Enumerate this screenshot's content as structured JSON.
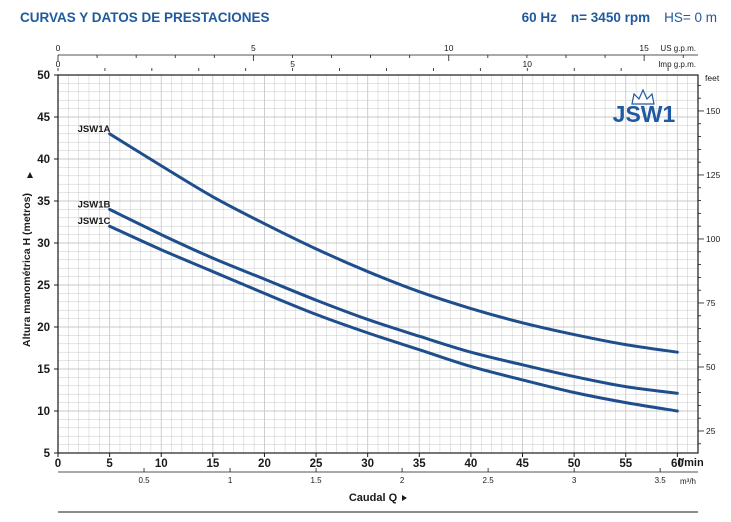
{
  "header": {
    "title": "CURVAS Y DATOS DE PRESTACIONES",
    "frequency": "60 Hz",
    "speed": "n= 3450 rpm",
    "hs": "HS= 0 m"
  },
  "brand_logo_text": "JSW1",
  "colors": {
    "curve": "#1f4e8c",
    "header": "#1f5aa0",
    "grid": "#c9c9c9",
    "axis": "#1a1a1a"
  },
  "chart_data": {
    "type": "line",
    "title": "",
    "xlabel": "Caudal Q",
    "ylabel": "Altura manométrica H (metros)",
    "x_unit": "l/min",
    "xlim": [
      0,
      62
    ],
    "ylim": [
      5,
      50
    ],
    "x_ticks": [
      0,
      5,
      10,
      15,
      20,
      25,
      30,
      35,
      40,
      45,
      50,
      55,
      60
    ],
    "y_ticks": [
      5,
      10,
      15,
      20,
      25,
      30,
      35,
      40,
      45,
      50
    ],
    "right_axis": {
      "unit": "feet",
      "ticks": [
        25,
        50,
        75,
        100,
        125,
        150
      ]
    },
    "top_axis_us": {
      "unit": "US g.p.m.",
      "ticks": [
        0,
        5,
        10,
        15
      ]
    },
    "top_axis_imp": {
      "unit": "Imp g.p.m.",
      "ticks": [
        0,
        5,
        10
      ]
    },
    "bottom_axis_m3h": {
      "unit": "m³/h",
      "ticks": [
        "0.5",
        "1",
        "1.5",
        "2",
        "2.5",
        "3",
        "3.5"
      ]
    },
    "grid": true,
    "series": [
      {
        "name": "JSW1A",
        "x": [
          5,
          10,
          15,
          20,
          25,
          30,
          35,
          40,
          45,
          50,
          55,
          60
        ],
        "y": [
          43,
          39.2,
          35.5,
          32.3,
          29.3,
          26.6,
          24.2,
          22.2,
          20.5,
          19.1,
          17.9,
          17
        ]
      },
      {
        "name": "JSW1B",
        "x": [
          5,
          10,
          15,
          20,
          25,
          30,
          35,
          40,
          45,
          50,
          55,
          60
        ],
        "y": [
          34,
          31,
          28.2,
          25.7,
          23.2,
          20.9,
          18.9,
          17,
          15.5,
          14.1,
          12.9,
          12.1
        ]
      },
      {
        "name": "JSW1C",
        "x": [
          5,
          10,
          15,
          20,
          25,
          30,
          35,
          40,
          45,
          50,
          55,
          60
        ],
        "y": [
          32,
          29.2,
          26.6,
          24,
          21.5,
          19.3,
          17.3,
          15.3,
          13.7,
          12.2,
          11,
          10
        ]
      }
    ]
  }
}
